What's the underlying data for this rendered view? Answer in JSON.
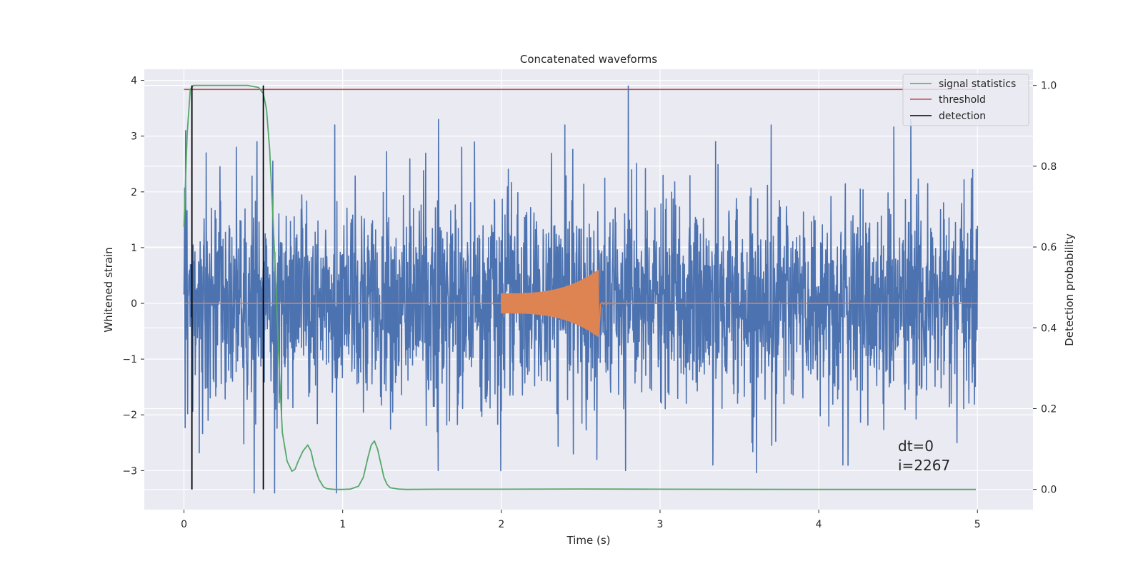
{
  "chart_data": {
    "type": "line",
    "title": "Concatenated waveforms",
    "xlabel": "Time (s)",
    "ylabel": "Whitened strain",
    "ylabel_right": "Detection probability",
    "xlim": [
      -0.25,
      5.35
    ],
    "ylim": [
      -3.7,
      4.2
    ],
    "ylim_right": [
      -0.05,
      1.04
    ],
    "x_ticks": [
      0,
      1,
      2,
      3,
      4,
      5
    ],
    "y_ticks": [
      -3,
      -2,
      -1,
      0,
      1,
      2,
      3,
      4
    ],
    "y_ticks_right": [
      0.0,
      0.2,
      0.4,
      0.6,
      0.8,
      1.0
    ],
    "x_tick_labels": [
      "0",
      "1",
      "2",
      "3",
      "4",
      "5"
    ],
    "y_tick_labels": [
      "−3",
      "−2",
      "−1",
      "0",
      "1",
      "2",
      "3",
      "4"
    ],
    "y_tick_labels_right": [
      "0.0",
      "0.2",
      "0.4",
      "0.6",
      "0.8",
      "1.0"
    ],
    "grid": true,
    "legend_position": "top-right",
    "legend": [
      {
        "label": "signal statistics",
        "color": "#55a868"
      },
      {
        "label": "threshold",
        "color": "#c44e52"
      },
      {
        "label": "detection",
        "color": "#000000"
      }
    ],
    "annotation": {
      "lines": [
        "dt=0",
        "i=2267"
      ],
      "x": 4.5,
      "y": -2.9
    },
    "series": [
      {
        "kind": "noise",
        "axis": "left",
        "color": "#4c72b0",
        "x_range": [
          0,
          5
        ],
        "amplitude_std": 0.9,
        "peak_points": [
          [
            0.01,
            3.1
          ],
          [
            0.14,
            2.7
          ],
          [
            0.33,
            2.8
          ],
          [
            0.46,
            2.9
          ],
          [
            0.95,
            3.2
          ],
          [
            1.75,
            2.8
          ],
          [
            2.4,
            3.2
          ],
          [
            2.8,
            3.9
          ],
          [
            3.35,
            2.9
          ],
          [
            3.7,
            3.2
          ],
          [
            4.58,
            3.3
          ],
          [
            4.97,
            2.4
          ]
        ],
        "trough_points": [
          [
            0.44,
            -3.4
          ],
          [
            0.57,
            -3.4
          ],
          [
            0.96,
            -3.4
          ],
          [
            1.6,
            -3.0
          ],
          [
            2.6,
            -2.8
          ],
          [
            2.78,
            -3.0
          ],
          [
            3.33,
            -2.9
          ],
          [
            4.15,
            -2.9
          ],
          [
            4.87,
            -2.5
          ]
        ]
      },
      {
        "kind": "chirp",
        "axis": "left",
        "color": "#dd8452",
        "x_range": [
          2.0,
          2.61
        ],
        "amplitude_start": 0.18,
        "amplitude_peak": 0.6,
        "ringdown_end": 3.0
      },
      {
        "name": "signal statistics",
        "axis": "right",
        "color": "#55a868",
        "x": [
          0.0,
          0.02,
          0.04,
          0.06,
          0.08,
          0.12,
          0.2,
          0.3,
          0.4,
          0.47,
          0.5,
          0.52,
          0.54,
          0.56,
          0.58,
          0.6,
          0.62,
          0.65,
          0.68,
          0.7,
          0.72,
          0.75,
          0.78,
          0.8,
          0.82,
          0.85,
          0.88,
          0.9,
          0.95,
          1.0,
          1.05,
          1.1,
          1.13,
          1.16,
          1.18,
          1.2,
          1.22,
          1.24,
          1.26,
          1.28,
          1.3,
          1.35,
          1.4,
          1.6,
          2.0,
          2.5,
          3.0,
          4.0,
          4.99
        ],
        "y": [
          0.65,
          0.88,
          0.99,
          1.0,
          1.0,
          1.0,
          1.0,
          1.0,
          1.0,
          0.995,
          0.98,
          0.94,
          0.84,
          0.68,
          0.5,
          0.3,
          0.14,
          0.07,
          0.045,
          0.05,
          0.07,
          0.095,
          0.11,
          0.095,
          0.06,
          0.025,
          0.006,
          0.002,
          0.0,
          0.0,
          0.001,
          0.008,
          0.03,
          0.08,
          0.11,
          0.12,
          0.1,
          0.065,
          0.03,
          0.012,
          0.004,
          0.001,
          0.0,
          0.0005,
          0.0005,
          0.001,
          0.0005,
          0.0,
          0.0
        ]
      },
      {
        "name": "threshold",
        "axis": "right",
        "color": "#c44e52",
        "x": [
          0.0,
          4.99
        ],
        "y": [
          0.99,
          0.99
        ]
      },
      {
        "name": "detection",
        "axis": "right",
        "color": "#000000",
        "kind": "vlines",
        "x": [
          0.05,
          0.5
        ],
        "y_range": [
          0.0,
          1.0
        ]
      }
    ]
  }
}
